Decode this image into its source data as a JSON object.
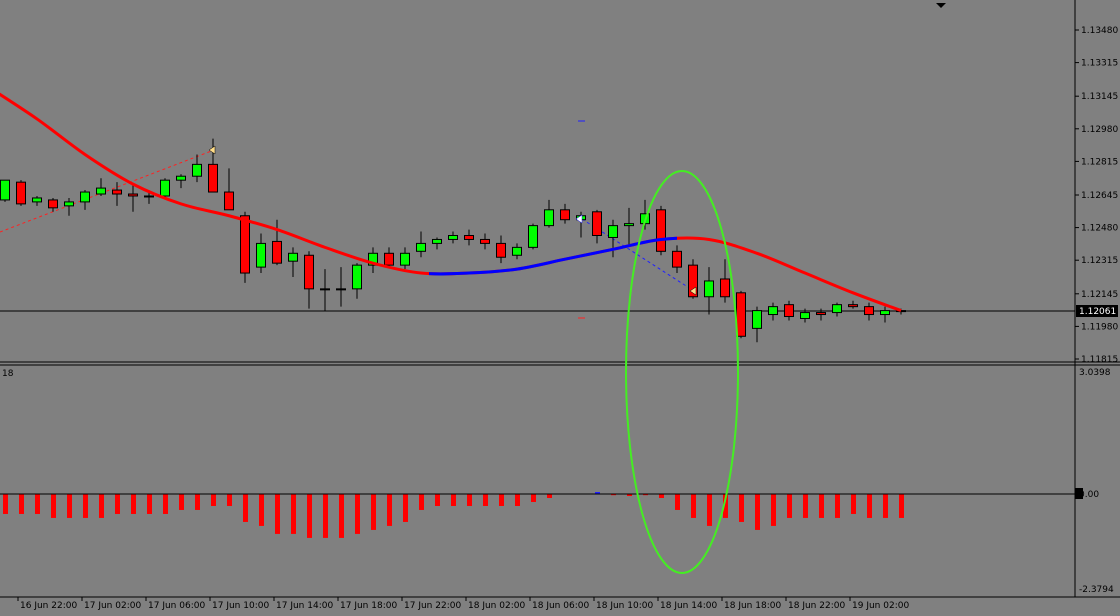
{
  "chart": {
    "symbol_marker_color": "#000000",
    "background": "#808080",
    "bull_color": "#00ff00",
    "bear_color": "#ff0000",
    "ma_color_down": "#ff0000",
    "ma_color_up": "#0000ff",
    "ellipse_color": "#44ee22",
    "current_price_label": "1.12061",
    "price_ticks": [
      "1.13480",
      "1.13315",
      "1.13145",
      "1.12980",
      "1.12815",
      "1.12645",
      "1.12480",
      "1.12315",
      "1.12145",
      "1.11980",
      "1.11815"
    ],
    "indicator_label": "18",
    "indicator_ticks": [
      "3.0398",
      "0.00",
      "-2.3794"
    ],
    "time_labels": [
      "16 Jun 22:00",
      "17 Jun 02:00",
      "17 Jun 06:00",
      "17 Jun 10:00",
      "17 Jun 14:00",
      "17 Jun 18:00",
      "17 Jun 22:00",
      "18 Jun 02:00",
      "18 Jun 06:00",
      "18 Jun 10:00",
      "18 Jun 14:00",
      "18 Jun 18:00",
      "18 Jun 22:00",
      "19 Jun 02:00"
    ]
  },
  "chart_data": {
    "type": "candlestick",
    "price_ylim": [
      1.1174,
      1.1354
    ],
    "indicator_ylim": [
      -2.3794,
      3.0398
    ],
    "candles": [
      {
        "o": 1.1262,
        "h": 1.1272,
        "l": 1.1261,
        "c": 1.1272
      },
      {
        "o": 1.1271,
        "h": 1.1272,
        "l": 1.1259,
        "c": 1.126
      },
      {
        "o": 1.1261,
        "h": 1.1264,
        "l": 1.1259,
        "c": 1.1263
      },
      {
        "o": 1.1262,
        "h": 1.1263,
        "l": 1.1256,
        "c": 1.1258
      },
      {
        "o": 1.1259,
        "h": 1.1263,
        "l": 1.1254,
        "c": 1.1261
      },
      {
        "o": 1.1261,
        "h": 1.1267,
        "l": 1.1257,
        "c": 1.1266
      },
      {
        "o": 1.1265,
        "h": 1.1273,
        "l": 1.1264,
        "c": 1.1268
      },
      {
        "o": 1.1267,
        "h": 1.1271,
        "l": 1.1259,
        "c": 1.1265
      },
      {
        "o": 1.1265,
        "h": 1.127,
        "l": 1.1256,
        "c": 1.1264
      },
      {
        "o": 1.1264,
        "h": 1.1266,
        "l": 1.126,
        "c": 1.1264
      },
      {
        "o": 1.1264,
        "h": 1.1273,
        "l": 1.1263,
        "c": 1.1272
      },
      {
        "o": 1.1272,
        "h": 1.1275,
        "l": 1.1268,
        "c": 1.1274
      },
      {
        "o": 1.1274,
        "h": 1.1285,
        "l": 1.1271,
        "c": 1.128
      },
      {
        "o": 1.128,
        "h": 1.1293,
        "l": 1.1266,
        "c": 1.1266
      },
      {
        "o": 1.1266,
        "h": 1.1278,
        "l": 1.1257,
        "c": 1.1257
      },
      {
        "o": 1.1254,
        "h": 1.1256,
        "l": 1.122,
        "c": 1.1225
      },
      {
        "o": 1.1228,
        "h": 1.1245,
        "l": 1.1225,
        "c": 1.124
      },
      {
        "o": 1.1241,
        "h": 1.1252,
        "l": 1.1229,
        "c": 1.123
      },
      {
        "o": 1.1231,
        "h": 1.1238,
        "l": 1.1223,
        "c": 1.1235
      },
      {
        "o": 1.1234,
        "h": 1.1236,
        "l": 1.1207,
        "c": 1.1217
      },
      {
        "o": 1.1217,
        "h": 1.1227,
        "l": 1.1206,
        "c": 1.1217
      },
      {
        "o": 1.1217,
        "h": 1.1228,
        "l": 1.1208,
        "c": 1.1217
      },
      {
        "o": 1.1217,
        "h": 1.123,
        "l": 1.1212,
        "c": 1.1229
      },
      {
        "o": 1.1229,
        "h": 1.1238,
        "l": 1.1225,
        "c": 1.1235
      },
      {
        "o": 1.1235,
        "h": 1.1238,
        "l": 1.1228,
        "c": 1.1229
      },
      {
        "o": 1.1229,
        "h": 1.1238,
        "l": 1.1227,
        "c": 1.1235
      },
      {
        "o": 1.1236,
        "h": 1.1246,
        "l": 1.1233,
        "c": 1.124
      },
      {
        "o": 1.124,
        "h": 1.1243,
        "l": 1.1237,
        "c": 1.1242
      },
      {
        "o": 1.1242,
        "h": 1.1246,
        "l": 1.124,
        "c": 1.1244
      },
      {
        "o": 1.1244,
        "h": 1.1247,
        "l": 1.1239,
        "c": 1.1242
      },
      {
        "o": 1.1242,
        "h": 1.1245,
        "l": 1.1237,
        "c": 1.124
      },
      {
        "o": 1.124,
        "h": 1.1244,
        "l": 1.123,
        "c": 1.1233
      },
      {
        "o": 1.1234,
        "h": 1.124,
        "l": 1.1232,
        "c": 1.1238
      },
      {
        "o": 1.1238,
        "h": 1.125,
        "l": 1.1237,
        "c": 1.1249
      },
      {
        "o": 1.1249,
        "h": 1.1262,
        "l": 1.1248,
        "c": 1.1257
      },
      {
        "o": 1.1257,
        "h": 1.126,
        "l": 1.125,
        "c": 1.1252
      },
      {
        "o": 1.1252,
        "h": 1.1256,
        "l": 1.1243,
        "c": 1.1254
      },
      {
        "o": 1.1256,
        "h": 1.1257,
        "l": 1.124,
        "c": 1.1244
      },
      {
        "o": 1.1243,
        "h": 1.1252,
        "l": 1.1233,
        "c": 1.1249
      },
      {
        "o": 1.1249,
        "h": 1.1258,
        "l": 1.1239,
        "c": 1.125
      },
      {
        "o": 1.125,
        "h": 1.1262,
        "l": 1.1247,
        "c": 1.1255
      },
      {
        "o": 1.1257,
        "h": 1.1259,
        "l": 1.1234,
        "c": 1.1236
      },
      {
        "o": 1.1236,
        "h": 1.1239,
        "l": 1.1225,
        "c": 1.1228
      },
      {
        "o": 1.1229,
        "h": 1.1232,
        "l": 1.1212,
        "c": 1.1213
      },
      {
        "o": 1.1213,
        "h": 1.1228,
        "l": 1.1204,
        "c": 1.1221
      },
      {
        "o": 1.1222,
        "h": 1.1232,
        "l": 1.121,
        "c": 1.1213
      },
      {
        "o": 1.1215,
        "h": 1.1216,
        "l": 1.1192,
        "c": 1.1193
      },
      {
        "o": 1.1197,
        "h": 1.1208,
        "l": 1.119,
        "c": 1.1206
      },
      {
        "o": 1.1204,
        "h": 1.121,
        "l": 1.1201,
        "c": 1.1208
      },
      {
        "o": 1.1209,
        "h": 1.1211,
        "l": 1.1201,
        "c": 1.1203
      },
      {
        "o": 1.1202,
        "h": 1.1207,
        "l": 1.12,
        "c": 1.1205
      },
      {
        "o": 1.1205,
        "h": 1.1207,
        "l": 1.1201,
        "c": 1.1204
      },
      {
        "o": 1.1205,
        "h": 1.121,
        "l": 1.1203,
        "c": 1.1209
      },
      {
        "o": 1.1209,
        "h": 1.1211,
        "l": 1.1207,
        "c": 1.1208
      },
      {
        "o": 1.1208,
        "h": 1.121,
        "l": 1.1201,
        "c": 1.1204
      },
      {
        "o": 1.1204,
        "h": 1.1208,
        "l": 1.12,
        "c": 1.1206
      },
      {
        "o": 1.1206,
        "h": 1.1207,
        "l": 1.1204,
        "c": 1.1206
      }
    ],
    "ma": [
      {
        "i": -1,
        "v": 1.1319
      },
      {
        "i": 2,
        "v": 1.1303
      },
      {
        "i": 5,
        "v": 1.1285
      },
      {
        "i": 8,
        "v": 1.127
      },
      {
        "i": 11,
        "v": 1.126
      },
      {
        "i": 14,
        "v": 1.1254
      },
      {
        "i": 17,
        "v": 1.1247
      },
      {
        "i": 20,
        "v": 1.1238
      },
      {
        "i": 23,
        "v": 1.123
      },
      {
        "i": 26,
        "v": 1.1225
      },
      {
        "i": 29,
        "v": 1.1225
      },
      {
        "i": 32,
        "v": 1.1227
      },
      {
        "i": 35,
        "v": 1.1232
      },
      {
        "i": 38,
        "v": 1.1237
      },
      {
        "i": 41,
        "v": 1.1242
      },
      {
        "i": 44,
        "v": 1.1242
      },
      {
        "i": 47,
        "v": 1.1235
      },
      {
        "i": 50,
        "v": 1.1225
      },
      {
        "i": 53,
        "v": 1.1215
      },
      {
        "i": 56,
        "v": 1.1206
      }
    ],
    "ma_up_range": [
      26.5,
      42.0
    ],
    "histogram": [
      -0.5,
      -0.5,
      -0.5,
      -0.6,
      -0.6,
      -0.6,
      -0.6,
      -0.5,
      -0.5,
      -0.5,
      -0.5,
      -0.4,
      -0.4,
      -0.3,
      -0.3,
      -0.7,
      -0.8,
      -1.0,
      -1.0,
      -1.1,
      -1.1,
      -1.1,
      -1.0,
      -0.9,
      -0.8,
      -0.7,
      -0.4,
      -0.3,
      -0.3,
      -0.3,
      -0.3,
      -0.3,
      -0.3,
      -0.2,
      -0.1,
      0.0,
      0.0,
      0.02,
      -0.03,
      -0.05,
      -0.03,
      -0.1,
      -0.4,
      -0.6,
      -0.8,
      -0.6,
      -0.7,
      -0.9,
      -0.8,
      -0.6,
      -0.6,
      -0.6,
      -0.6,
      -0.5,
      -0.6,
      -0.6,
      -0.6
    ]
  }
}
